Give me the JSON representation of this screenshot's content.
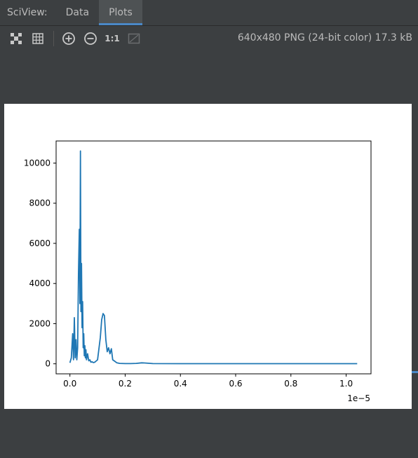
{
  "tabs": {
    "prefix": "SciView:",
    "items": [
      {
        "label": "Data"
      },
      {
        "label": "Plots"
      }
    ]
  },
  "toolbar": {
    "actual_size_label": "1:1",
    "icons": [
      "fit-screen-icon",
      "grid-icon",
      "zoom-in-icon",
      "zoom-out-icon",
      "actual-size-icon",
      "toggle-background-icon"
    ]
  },
  "image_info": "640x480 PNG (24-bit color) 17.3 kB",
  "colors": {
    "accent": "#4a88c7",
    "line": "#1f77b4",
    "background": "#3c3f41"
  },
  "chart_data": {
    "type": "line",
    "title": "",
    "xlabel": "",
    "ylabel": "",
    "x_offset_label": "1e−5",
    "xlim": [
      -0.05,
      1.09
    ],
    "ylim": [
      -500,
      11100
    ],
    "xticks": [
      0.0,
      0.2,
      0.4,
      0.6,
      0.8,
      1.0
    ],
    "xtick_labels": [
      "0.0",
      "0.2",
      "0.4",
      "0.6",
      "0.8",
      "1.0"
    ],
    "yticks": [
      0,
      2000,
      4000,
      6000,
      8000,
      10000
    ],
    "ytick_labels": [
      "0",
      "2000",
      "4000",
      "6000",
      "8000",
      "10000"
    ],
    "grid": false,
    "series": [
      {
        "x": [
          0.0,
          0.005,
          0.01,
          0.013,
          0.016,
          0.019,
          0.022,
          0.025,
          0.028,
          0.031,
          0.034,
          0.036,
          0.038,
          0.04,
          0.042,
          0.044,
          0.046,
          0.048,
          0.05,
          0.052,
          0.054,
          0.056,
          0.058,
          0.06,
          0.064,
          0.068,
          0.072,
          0.076,
          0.08,
          0.085,
          0.09,
          0.1,
          0.11,
          0.115,
          0.12,
          0.125,
          0.13,
          0.135,
          0.14,
          0.145,
          0.15,
          0.155,
          0.16,
          0.17,
          0.18,
          0.2,
          0.22,
          0.24,
          0.26,
          0.27,
          0.3,
          0.4,
          0.5,
          0.6,
          0.7,
          0.8,
          0.9,
          1.0,
          1.04
        ],
        "y": [
          50,
          300,
          1500,
          200,
          2300,
          300,
          1200,
          200,
          800,
          4500,
          6700,
          3000,
          10600,
          2600,
          5000,
          1800,
          3100,
          800,
          1500,
          400,
          900,
          300,
          700,
          200,
          500,
          150,
          200,
          80,
          100,
          60,
          80,
          200,
          1300,
          2200,
          2500,
          2400,
          1200,
          600,
          800,
          500,
          750,
          200,
          150,
          50,
          20,
          10,
          10,
          20,
          50,
          40,
          10,
          5,
          5,
          5,
          5,
          5,
          5,
          5,
          5
        ]
      }
    ]
  }
}
